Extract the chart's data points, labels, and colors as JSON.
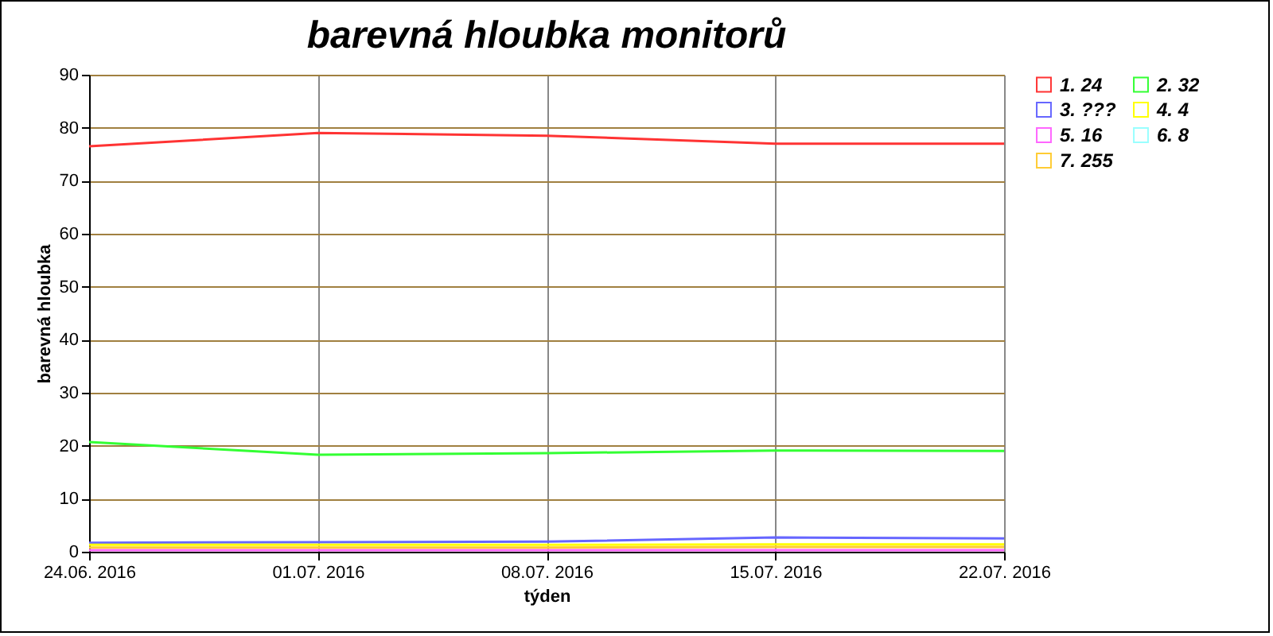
{
  "chart_data": {
    "type": "line",
    "title": "barevná hloubka monitorů",
    "xlabel": "týden",
    "ylabel": "barevná hloubka",
    "categories": [
      "24.06. 2016",
      "01.07. 2016",
      "08.07. 2016",
      "15.07. 2016",
      "22.07. 2016"
    ],
    "ylim": [
      0,
      90
    ],
    "yticks": [
      0,
      10,
      20,
      30,
      40,
      50,
      60,
      70,
      80,
      90
    ],
    "grid": true,
    "legend": "top right",
    "series": [
      {
        "name": "1. 24",
        "color": "#ff3333",
        "values": [
          76.5,
          79,
          78.5,
          77,
          77
        ]
      },
      {
        "name": "2. 32",
        "color": "#33ff33",
        "values": [
          20.7,
          18.3,
          18.6,
          19.1,
          19
        ]
      },
      {
        "name": "3. ???",
        "color": "#6666ff",
        "values": [
          1.7,
          1.8,
          1.9,
          2.7,
          2.5
        ]
      },
      {
        "name": "4. 4",
        "color": "#ffff00",
        "values": [
          1.3,
          1.3,
          1.3,
          1.4,
          1.4
        ]
      },
      {
        "name": "5. 16",
        "color": "#ff66ff",
        "values": [
          0.3,
          0.3,
          0.3,
          0.3,
          0.3
        ]
      },
      {
        "name": "6. 8",
        "color": "#99ffff",
        "values": [
          null,
          null,
          null,
          null,
          null
        ]
      },
      {
        "name": "7. 255",
        "color": "#ffcc33",
        "values": [
          0.8,
          0.8,
          0.8,
          0.9,
          0.9
        ]
      }
    ]
  }
}
